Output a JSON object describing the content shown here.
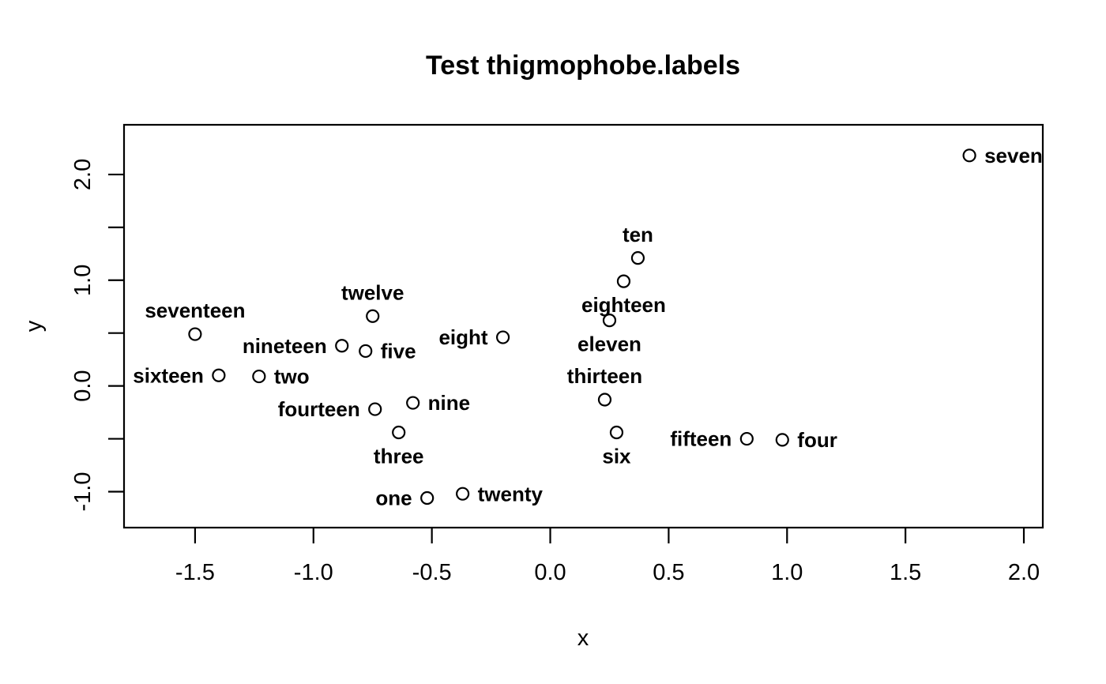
{
  "chart_data": {
    "type": "scatter",
    "title": "Test thigmophobe.labels",
    "xlabel": "x",
    "ylabel": "y",
    "xlim": [
      -1.8,
      2.08
    ],
    "ylim": [
      -1.34,
      2.47
    ],
    "grid": false,
    "legend": "none",
    "marker": "open-circle",
    "marker_color": "#000000",
    "background": "#ffffff",
    "axis_color": "#000000",
    "x_ticks": [
      -1.5,
      -1.0,
      -0.5,
      0.0,
      0.5,
      1.0,
      1.5,
      2.0
    ],
    "x_tick_labels": [
      "-1.5",
      "-1.0",
      "-0.5",
      "0.0",
      "0.5",
      "1.0",
      "1.5",
      "2.0"
    ],
    "y_ticks": [
      2.0,
      1.5,
      1.0,
      0.5,
      0.0,
      -0.5,
      -1.0
    ],
    "y_tick_labels": [
      "2.0",
      "",
      "1.0",
      "",
      "0.0",
      "",
      "-1.0"
    ],
    "points": [
      {
        "label": "one",
        "x": -0.52,
        "y": -1.06,
        "label_pos": "left",
        "color": "#DF536B"
      },
      {
        "label": "two",
        "x": -1.23,
        "y": 0.09,
        "label_pos": "right",
        "color": "#61D04F"
      },
      {
        "label": "three",
        "x": -0.64,
        "y": -0.44,
        "label_pos": "below",
        "color": "#2297E6"
      },
      {
        "label": "four",
        "x": 0.98,
        "y": -0.51,
        "label_pos": "right",
        "color": "#28E2E5"
      },
      {
        "label": "five",
        "x": -0.78,
        "y": 0.33,
        "label_pos": "right",
        "color": "#CD0BBC"
      },
      {
        "label": "six",
        "x": 0.28,
        "y": -0.44,
        "label_pos": "below",
        "color": "#9E9E9E"
      },
      {
        "label": "seven",
        "x": 1.77,
        "y": 2.18,
        "label_pos": "right",
        "color": "#000000"
      },
      {
        "label": "eight",
        "x": -0.2,
        "y": 0.46,
        "label_pos": "left",
        "color": "#DF536B"
      },
      {
        "label": "nine",
        "x": -0.58,
        "y": -0.16,
        "label_pos": "right",
        "color": "#61D04F"
      },
      {
        "label": "ten",
        "x": 0.37,
        "y": 1.21,
        "label_pos": "above",
        "color": "#2297E6"
      },
      {
        "label": "eleven",
        "x": 0.25,
        "y": 0.62,
        "label_pos": "below",
        "color": "#DF536B"
      },
      {
        "label": "twelve",
        "x": -0.75,
        "y": 0.66,
        "label_pos": "above",
        "color": "#61D04F"
      },
      {
        "label": "thirteen",
        "x": 0.23,
        "y": -0.13,
        "label_pos": "above",
        "color": "#2297E6"
      },
      {
        "label": "fourteen",
        "x": -0.74,
        "y": -0.22,
        "label_pos": "left",
        "color": "#28E2E5"
      },
      {
        "label": "fifteen",
        "x": 0.83,
        "y": -0.5,
        "label_pos": "left",
        "color": "#CD0BBC"
      },
      {
        "label": "sixteen",
        "x": -1.4,
        "y": 0.1,
        "label_pos": "left",
        "color": "#9E9E9E"
      },
      {
        "label": "seventeen",
        "x": -1.5,
        "y": 0.49,
        "label_pos": "above",
        "color": "#000000"
      },
      {
        "label": "eighteen",
        "x": 0.31,
        "y": 0.99,
        "label_pos": "below",
        "color": "#DF536B"
      },
      {
        "label": "nineteen",
        "x": -0.88,
        "y": 0.38,
        "label_pos": "left",
        "color": "#61D04F"
      },
      {
        "label": "twenty",
        "x": -0.37,
        "y": -1.02,
        "label_pos": "right",
        "color": "#2297E6"
      }
    ]
  }
}
